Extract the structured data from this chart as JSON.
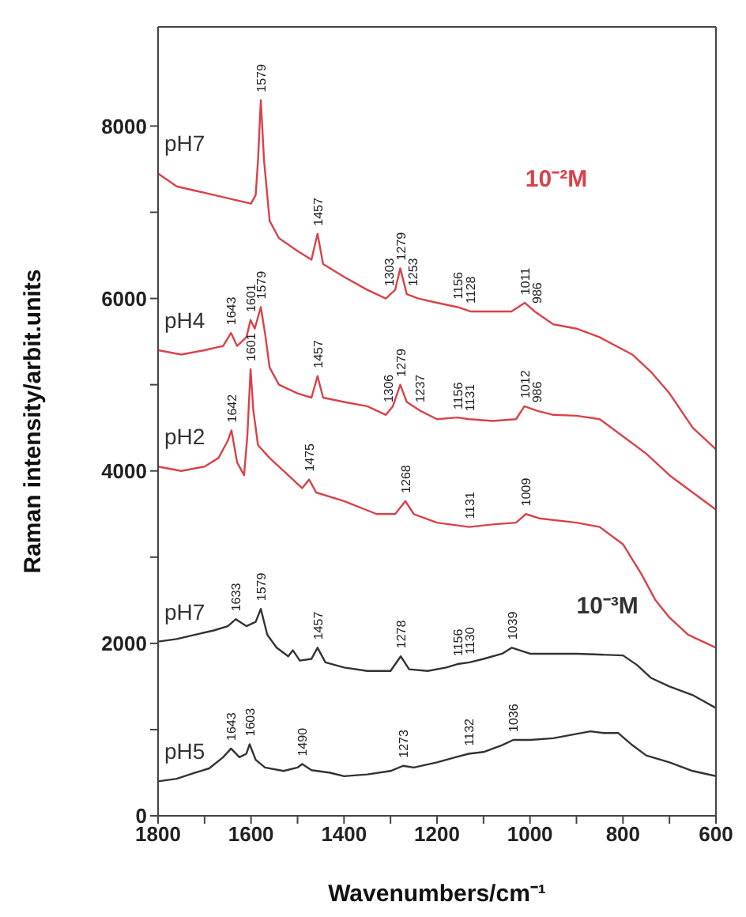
{
  "chart_data": {
    "type": "line",
    "xlabel": "Wavenumbers/cm⁻¹",
    "ylabel": "Raman intensity/arbit.units",
    "xlim": [
      1800,
      600
    ],
    "xticks": [
      1800,
      {
        "value": 1700,
        "label": null
      },
      1600,
      {
        "value": 1500,
        "label": null
      },
      1400,
      {
        "value": 1300,
        "label": null
      },
      1200,
      {
        "value": 1100,
        "label": null
      },
      1000,
      {
        "value": 900,
        "label": null
      },
      800,
      {
        "value": 700,
        "label": null
      },
      600
    ],
    "ylim": [
      0,
      9150
    ],
    "yticks": [
      0,
      {
        "value": 1000,
        "label": null
      },
      2000,
      {
        "value": 3000,
        "label": null
      },
      4000,
      {
        "value": 5000,
        "label": null
      },
      6000,
      {
        "value": 7000,
        "label": null
      },
      8000
    ],
    "grid": false,
    "legend": false,
    "series": [
      {
        "name": "pH7",
        "color": "#d9424a",
        "x": [
          1800,
          1760,
          1720,
          1680,
          1640,
          1600,
          1590,
          1585,
          1579,
          1572,
          1560,
          1540,
          1500,
          1470,
          1457,
          1445,
          1400,
          1350,
          1310,
          1290,
          1279,
          1265,
          1240,
          1200,
          1156,
          1128,
          1080,
          1040,
          1011,
          990,
          950,
          900,
          850,
          780,
          740,
          700,
          650,
          600
        ],
        "values": [
          7450,
          7300,
          7250,
          7200,
          7150,
          7100,
          7200,
          7600,
          8300,
          7600,
          6900,
          6700,
          6550,
          6450,
          6750,
          6400,
          6250,
          6100,
          6000,
          6100,
          6350,
          6050,
          6000,
          5950,
          5900,
          5850,
          5850,
          5850,
          5950,
          5850,
          5700,
          5650,
          5550,
          5350,
          5150,
          4900,
          4500,
          4250
        ]
      },
      {
        "name": "pH4",
        "color": "#d9424a",
        "x": [
          1800,
          1750,
          1700,
          1660,
          1643,
          1630,
          1610,
          1601,
          1592,
          1579,
          1570,
          1560,
          1540,
          1500,
          1470,
          1457,
          1445,
          1400,
          1350,
          1310,
          1295,
          1279,
          1265,
          1237,
          1200,
          1156,
          1131,
          1080,
          1030,
          1012,
          986,
          950,
          900,
          850,
          800,
          750,
          700,
          650,
          600
        ],
        "values": [
          5400,
          5350,
          5400,
          5450,
          5600,
          5450,
          5550,
          5750,
          5650,
          5900,
          5600,
          5200,
          5000,
          4900,
          4850,
          5100,
          4850,
          4800,
          4750,
          4650,
          4750,
          5000,
          4800,
          4700,
          4600,
          4620,
          4600,
          4580,
          4600,
          4750,
          4700,
          4650,
          4640,
          4600,
          4400,
          4200,
          3950,
          3750,
          3550
        ]
      },
      {
        "name": "pH2",
        "color": "#d9424a",
        "x": [
          1800,
          1750,
          1700,
          1670,
          1650,
          1642,
          1630,
          1615,
          1608,
          1601,
          1595,
          1585,
          1560,
          1530,
          1490,
          1475,
          1460,
          1400,
          1330,
          1290,
          1268,
          1250,
          1200,
          1131,
          1080,
          1030,
          1009,
          980,
          900,
          850,
          800,
          760,
          730,
          700,
          660,
          600
        ],
        "values": [
          4050,
          4000,
          4050,
          4150,
          4350,
          4470,
          4100,
          3950,
          4400,
          5180,
          4700,
          4300,
          4150,
          4000,
          3800,
          3900,
          3750,
          3650,
          3500,
          3500,
          3650,
          3500,
          3400,
          3350,
          3380,
          3400,
          3500,
          3450,
          3400,
          3350,
          3150,
          2800,
          2500,
          2300,
          2100,
          1950
        ]
      },
      {
        "name": "pH7",
        "color": "#333333",
        "x": [
          1800,
          1760,
          1720,
          1680,
          1650,
          1633,
          1610,
          1590,
          1579,
          1565,
          1545,
          1520,
          1510,
          1495,
          1470,
          1457,
          1440,
          1400,
          1350,
          1300,
          1278,
          1260,
          1220,
          1180,
          1156,
          1130,
          1100,
          1060,
          1039,
          1000,
          950,
          900,
          850,
          800,
          770,
          740,
          700,
          650,
          600
        ],
        "values": [
          2020,
          2050,
          2100,
          2150,
          2200,
          2280,
          2200,
          2250,
          2400,
          2100,
          1950,
          1850,
          1920,
          1800,
          1820,
          1950,
          1780,
          1720,
          1680,
          1680,
          1850,
          1700,
          1680,
          1720,
          1760,
          1780,
          1820,
          1880,
          1950,
          1880,
          1880,
          1880,
          1870,
          1860,
          1750,
          1600,
          1500,
          1400,
          1250
        ]
      },
      {
        "name": "pH5",
        "color": "#333333",
        "x": [
          1800,
          1760,
          1720,
          1690,
          1660,
          1643,
          1625,
          1610,
          1603,
          1590,
          1570,
          1530,
          1500,
          1490,
          1470,
          1430,
          1400,
          1350,
          1300,
          1273,
          1250,
          1200,
          1160,
          1132,
          1100,
          1060,
          1036,
          1000,
          950,
          900,
          870,
          840,
          810,
          780,
          750,
          700,
          650,
          600
        ],
        "values": [
          400,
          430,
          500,
          550,
          680,
          780,
          680,
          720,
          830,
          650,
          560,
          520,
          560,
          600,
          530,
          500,
          460,
          480,
          520,
          580,
          560,
          620,
          680,
          720,
          740,
          820,
          880,
          880,
          900,
          950,
          980,
          960,
          960,
          820,
          700,
          620,
          520,
          460
        ]
      }
    ],
    "annotations": [
      {
        "text": "1579",
        "x": 1579,
        "y": 8300
      },
      {
        "text": "1457",
        "x": 1457,
        "y": 6750
      },
      {
        "text": "1303",
        "x": 1303,
        "y": 6050
      },
      {
        "text": "1279",
        "x": 1279,
        "y": 6350
      },
      {
        "text": "1253",
        "x": 1253,
        "y": 6050
      },
      {
        "text": "1156",
        "x": 1156,
        "y": 5900
      },
      {
        "text": "1128",
        "x": 1128,
        "y": 5850
      },
      {
        "text": "1011",
        "x": 1011,
        "y": 5950
      },
      {
        "text": "986",
        "x": 986,
        "y": 5850
      },
      {
        "text": "1643",
        "x": 1643,
        "y": 5600
      },
      {
        "text": "1601",
        "x": 1601,
        "y": 5750
      },
      {
        "text": "1579",
        "x": 1579,
        "y": 5900
      },
      {
        "text": "1457",
        "x": 1457,
        "y": 5100
      },
      {
        "text": "1306",
        "x": 1306,
        "y": 4700
      },
      {
        "text": "1279",
        "x": 1279,
        "y": 5000
      },
      {
        "text": "1237",
        "x": 1237,
        "y": 4700
      },
      {
        "text": "1156",
        "x": 1156,
        "y": 4620
      },
      {
        "text": "1131",
        "x": 1131,
        "y": 4600
      },
      {
        "text": "1012",
        "x": 1012,
        "y": 4750
      },
      {
        "text": "986",
        "x": 986,
        "y": 4700
      },
      {
        "text": "1642",
        "x": 1642,
        "y": 4470
      },
      {
        "text": "1601",
        "x": 1601,
        "y": 5180
      },
      {
        "text": "1475",
        "x": 1475,
        "y": 3900
      },
      {
        "text": "1268",
        "x": 1268,
        "y": 3650
      },
      {
        "text": "1131",
        "x": 1131,
        "y": 3350
      },
      {
        "text": "1009",
        "x": 1009,
        "y": 3500
      },
      {
        "text": "1633",
        "x": 1633,
        "y": 2280
      },
      {
        "text": "1579",
        "x": 1579,
        "y": 2400
      },
      {
        "text": "1457",
        "x": 1457,
        "y": 1950
      },
      {
        "text": "1278",
        "x": 1278,
        "y": 1850
      },
      {
        "text": "1156",
        "x": 1156,
        "y": 1760
      },
      {
        "text": "1130",
        "x": 1130,
        "y": 1780
      },
      {
        "text": "1039",
        "x": 1039,
        "y": 1950
      },
      {
        "text": "1643",
        "x": 1643,
        "y": 780
      },
      {
        "text": "1603",
        "x": 1603,
        "y": 830
      },
      {
        "text": "1490",
        "x": 1490,
        "y": 600
      },
      {
        "text": "1273",
        "x": 1273,
        "y": 580
      },
      {
        "text": "1132",
        "x": 1132,
        "y": 720
      },
      {
        "text": "1036",
        "x": 1036,
        "y": 880
      },
      "10⁻²M",
      "10⁻³M"
    ]
  }
}
